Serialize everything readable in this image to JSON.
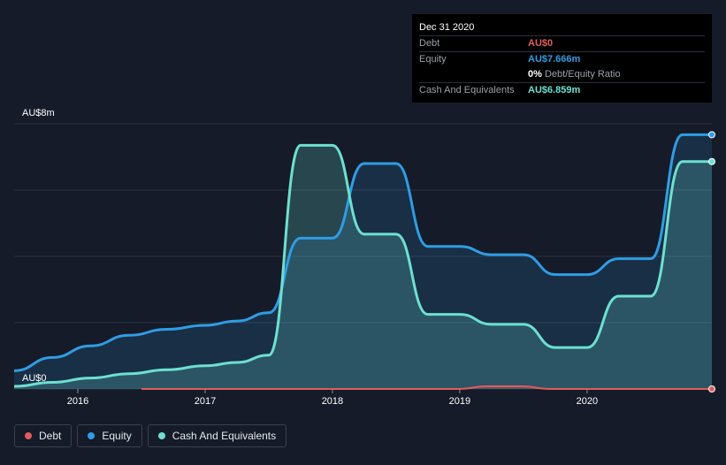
{
  "tooltip": {
    "date": "Dec 31 2020",
    "rows": [
      {
        "label": "Debt",
        "value": "AU$0",
        "color": "#e15b5b"
      },
      {
        "label": "Equity",
        "value": "AU$7.666m",
        "color": "#2f9de4"
      },
      {
        "label": "",
        "value": "0%",
        "extra": "Debt/Equity Ratio",
        "color": "#ffffff"
      },
      {
        "label": "Cash And Equivalents",
        "value": "AU$6.859m",
        "color": "#6de0d0"
      }
    ]
  },
  "legend": [
    {
      "label": "Debt",
      "color": "#e15b5b"
    },
    {
      "label": "Equity",
      "color": "#2f9de4"
    },
    {
      "label": "Cash And Equivalents",
      "color": "#6de0d0"
    }
  ],
  "chart_data": {
    "type": "area",
    "y_top_label": "AU$8m",
    "y_bottom_label": "AU$0",
    "ylim": [
      0,
      8
    ],
    "xlim": [
      2015.5,
      2020.98
    ],
    "x_ticks": [
      2016,
      2017,
      2018,
      2019,
      2020
    ],
    "x_tick_labels": [
      "2016",
      "2017",
      "2018",
      "2019",
      "2020"
    ],
    "series": [
      {
        "name": "Debt",
        "color": "#e15b5b",
        "x": [
          2016.5,
          2019.0,
          2019.2,
          2019.5,
          2019.7,
          2020.98
        ],
        "y": [
          0,
          0,
          0.08,
          0.08,
          0,
          0
        ]
      },
      {
        "name": "Equity",
        "color": "#2f9de4",
        "x": [
          2015.5,
          2015.8,
          2016.1,
          2016.4,
          2016.7,
          2017.0,
          2017.25,
          2017.5,
          2017.75,
          2018.0,
          2018.25,
          2018.5,
          2018.75,
          2019.0,
          2019.25,
          2019.5,
          2019.75,
          2020.0,
          2020.25,
          2020.5,
          2020.75,
          2020.98
        ],
        "y": [
          0.55,
          0.95,
          1.3,
          1.62,
          1.8,
          1.92,
          2.05,
          2.3,
          4.55,
          4.55,
          6.8,
          6.8,
          4.3,
          4.3,
          4.05,
          4.05,
          3.45,
          3.45,
          3.93,
          3.93,
          7.67,
          7.67
        ]
      },
      {
        "name": "Cash And Equivalents",
        "color": "#6de0d0",
        "x": [
          2015.5,
          2015.8,
          2016.1,
          2016.4,
          2016.7,
          2017.0,
          2017.25,
          2017.5,
          2017.75,
          2018.0,
          2018.25,
          2018.5,
          2018.75,
          2019.0,
          2019.25,
          2019.5,
          2019.75,
          2020.0,
          2020.25,
          2020.5,
          2020.75,
          2020.98
        ],
        "y": [
          0.08,
          0.2,
          0.33,
          0.46,
          0.58,
          0.7,
          0.8,
          1.02,
          7.35,
          7.35,
          4.67,
          4.67,
          2.25,
          2.25,
          1.95,
          1.95,
          1.25,
          1.25,
          2.8,
          2.8,
          6.86,
          6.86
        ]
      }
    ],
    "grid": true
  }
}
